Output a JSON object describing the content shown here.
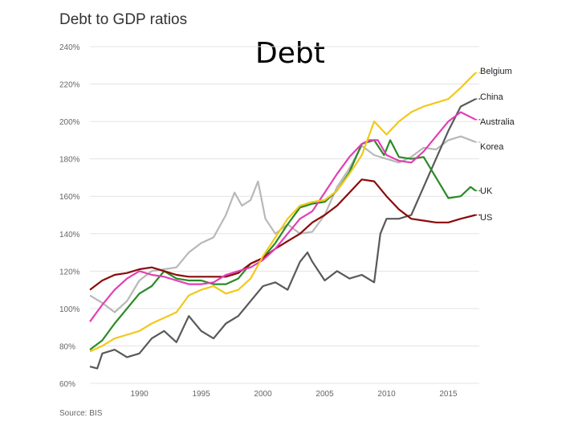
{
  "slide_title": "Debt",
  "source": "Source: BIS",
  "colors": {
    "Belgium": "#f2c81a",
    "China": "#595959",
    "Australia": "#e23fb4",
    "Korea": "#b8b8b8",
    "UK": "#2b8a27",
    "US": "#8b0a0a"
  },
  "chart_data": {
    "type": "line",
    "title": "Debt to GDP ratios",
    "xlabel": "",
    "ylabel": "",
    "xlim": [
      1986,
      2017.5
    ],
    "ylim": [
      60,
      240
    ],
    "yticks": [
      60,
      80,
      100,
      120,
      140,
      160,
      180,
      200,
      220,
      240
    ],
    "ytick_labels": [
      "60%",
      "80%",
      "100%",
      "120%",
      "140%",
      "160%",
      "180%",
      "200%",
      "220%",
      "240%"
    ],
    "xticks": [
      1990,
      1995,
      2000,
      2005,
      2010,
      2015
    ],
    "xtick_labels": [
      "1990",
      "1995",
      "2000",
      "2005",
      "2010",
      "2015"
    ],
    "grid": true,
    "legend": "right, at line ends",
    "series": [
      {
        "name": "Korea",
        "x": [
          1986,
          1987,
          1988,
          1989,
          1990,
          1991,
          1992,
          1993,
          1994,
          1995,
          1996,
          1997,
          1997.7,
          1998.3,
          1999,
          1999.6,
          2000.2,
          2001,
          2002,
          2003,
          2004,
          2005,
          2006,
          2007,
          2008,
          2009,
          2010,
          2011,
          2012,
          2013,
          2014,
          2015,
          2016,
          2017.2
        ],
        "values": [
          107,
          103,
          98,
          104,
          115,
          120,
          121,
          122,
          130,
          135,
          138,
          150,
          162,
          155,
          158,
          168,
          148,
          140,
          145,
          140,
          141,
          150,
          165,
          175,
          187,
          182,
          180,
          178,
          181,
          186,
          185,
          190,
          192,
          189
        ]
      },
      {
        "name": "China",
        "x": [
          1986,
          1986.6,
          1987,
          1988,
          1989,
          1990,
          1991,
          1992,
          1993,
          1994,
          1995,
          1996,
          1997,
          1998,
          1999,
          2000,
          2001,
          2002,
          2003,
          2003.6,
          2004,
          2005,
          2006,
          2007,
          2008,
          2009,
          2009.5,
          2010,
          2011,
          2012,
          2013,
          2014,
          2015,
          2016,
          2017.2
        ],
        "values": [
          69,
          68,
          76,
          78,
          74,
          76,
          84,
          88,
          82,
          96,
          88,
          84,
          92,
          96,
          104,
          112,
          114,
          110,
          125,
          130,
          125,
          115,
          120,
          116,
          118,
          114,
          140,
          148,
          148,
          150,
          165,
          180,
          195,
          208,
          212
        ]
      },
      {
        "name": "UK",
        "x": [
          1986,
          1987,
          1988,
          1989,
          1990,
          1991,
          1992,
          1993,
          1994,
          1995,
          1996,
          1997,
          1998,
          1999,
          2000,
          2001,
          2002,
          2003,
          2004,
          2005,
          2006,
          2007,
          2008,
          2009,
          2009.8,
          2010.3,
          2011,
          2012,
          2013,
          2014,
          2015,
          2016,
          2016.8,
          2017.2
        ],
        "values": [
          78,
          83,
          92,
          100,
          108,
          112,
          120,
          116,
          115,
          115,
          113,
          113,
          116,
          124,
          127,
          135,
          145,
          154,
          156,
          157,
          163,
          173,
          188,
          190,
          182,
          190,
          181,
          180,
          181,
          170,
          159,
          160,
          165,
          163
        ]
      },
      {
        "name": "US",
        "x": [
          1986,
          1987,
          1988,
          1989,
          1990,
          1991,
          1992,
          1993,
          1994,
          1995,
          1996,
          1997,
          1998,
          1999,
          2000,
          2001,
          2002,
          2003,
          2004,
          2005,
          2006,
          2007,
          2008,
          2009,
          2010,
          2011,
          2012,
          2013,
          2014,
          2015,
          2016,
          2017.2
        ],
        "values": [
          110,
          115,
          118,
          119,
          121,
          122,
          120,
          118,
          117,
          117,
          117,
          117,
          119,
          124,
          127,
          132,
          136,
          140,
          146,
          150,
          155,
          162,
          169,
          168,
          160,
          153,
          148,
          147,
          146,
          146,
          148,
          150
        ]
      },
      {
        "name": "Australia",
        "x": [
          1986,
          1987,
          1988,
          1989,
          1990,
          1991,
          1992,
          1993,
          1994,
          1995,
          1996,
          1997,
          1998,
          1999,
          2000,
          2001,
          2002,
          2003,
          2004,
          2005,
          2006,
          2007,
          2008,
          2008.6,
          2009.3,
          2010,
          2011,
          2012,
          2013,
          2014,
          2015,
          2016,
          2017.2
        ],
        "values": [
          93,
          102,
          110,
          116,
          120,
          118,
          117,
          115,
          113,
          113,
          114,
          118,
          120,
          122,
          126,
          132,
          140,
          148,
          152,
          162,
          172,
          181,
          188,
          190,
          190,
          182,
          179,
          178,
          184,
          192,
          200,
          205,
          201
        ]
      },
      {
        "name": "Belgium",
        "x": [
          1986,
          1987,
          1988,
          1989,
          1990,
          1991,
          1992,
          1993,
          1994,
          1995,
          1996,
          1997,
          1998,
          1999,
          2000,
          2001,
          2002,
          2003,
          2004,
          2005,
          2006,
          2007,
          2008,
          2009,
          2010,
          2011,
          2012,
          2013,
          2014,
          2015,
          2016,
          2017.2
        ],
        "values": [
          77,
          80,
          84,
          86,
          88,
          92,
          95,
          98,
          107,
          110,
          112,
          108,
          110,
          116,
          128,
          138,
          148,
          155,
          157,
          158,
          163,
          172,
          182,
          200,
          193,
          200,
          205,
          208,
          210,
          212,
          218,
          226
        ]
      }
    ]
  }
}
